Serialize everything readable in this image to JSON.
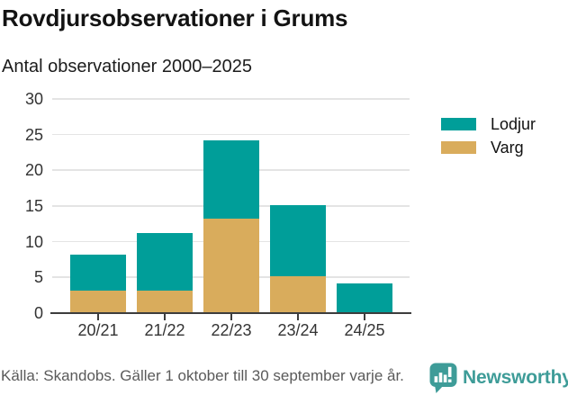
{
  "header": {
    "title": "Rovdjursobservationer i Grums",
    "subtitle": "Antal observationer 2000–2025"
  },
  "chart_data": {
    "type": "bar",
    "stacked": true,
    "title": "Rovdjursobservationer i Grums",
    "subtitle": "Antal observationer 2000–2025",
    "categories": [
      "20/21",
      "21/22",
      "22/23",
      "23/24",
      "24/25"
    ],
    "series": [
      {
        "name": "Varg",
        "color": "#D9AC5C",
        "values": [
          3,
          3,
          13,
          5,
          0
        ]
      },
      {
        "name": "Lodjur",
        "color": "#009E99",
        "values": [
          5,
          8,
          11,
          10,
          4
        ]
      }
    ],
    "totals": [
      8,
      11,
      24,
      15,
      4
    ],
    "xlabel": "",
    "ylabel": "",
    "ylim": [
      0,
      30
    ],
    "yticks": [
      0,
      5,
      10,
      15,
      20,
      25,
      30
    ],
    "grid": "horizontal",
    "legend_position": "right",
    "legend_order": [
      "Lodjur",
      "Varg"
    ]
  },
  "footer": {
    "source": "Källa: Skandobs. Gäller 1 oktober till 30 september varje år.",
    "brand": "Newsworthy",
    "brand_color": "#3E9C98",
    "brand_icon": "newsworthy-speech-bubble-chart-icon"
  }
}
